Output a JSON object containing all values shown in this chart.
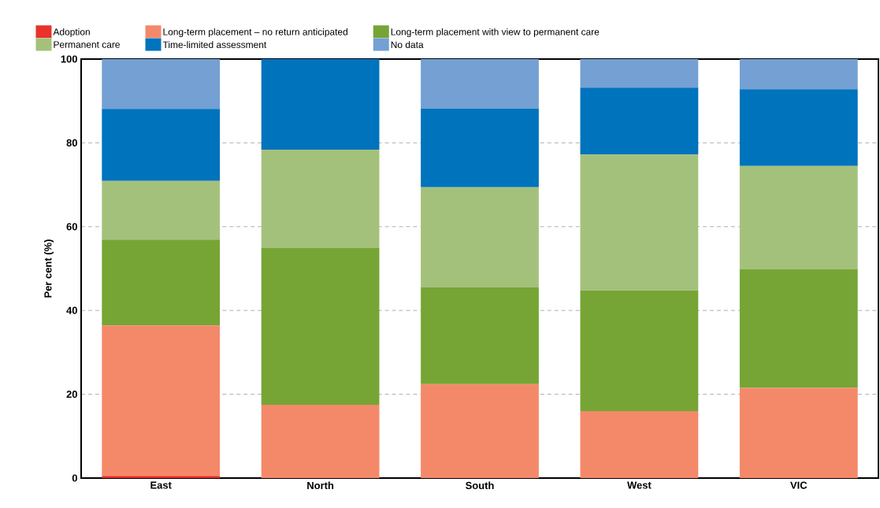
{
  "chart_data": {
    "type": "bar",
    "stacked": true,
    "ylabel": "Per cent (%)",
    "categories": [
      "East",
      "North",
      "South",
      "West",
      "VIC"
    ],
    "series": [
      {
        "name": "Adoption",
        "color": "#e8332a",
        "values": [
          0.5,
          0,
          0,
          0,
          0
        ]
      },
      {
        "name": "Long-term placement – no return anticipated",
        "color": "#f4896a",
        "values": [
          35.9,
          17.5,
          22.4,
          16.0,
          21.5
        ]
      },
      {
        "name": "Long-term placement with view to permanent care",
        "color": "#76a535",
        "values": [
          20.5,
          37.4,
          23.1,
          28.8,
          28.4
        ]
      },
      {
        "name": "Permanent care",
        "color": "#a4c17c",
        "values": [
          14.0,
          23.5,
          23.9,
          32.4,
          24.6
        ]
      },
      {
        "name": "Time-limited assessment",
        "color": "#0073bd",
        "values": [
          17.2,
          21.6,
          18.8,
          16.0,
          18.3
        ]
      },
      {
        "name": "No data",
        "color": "#74a0d3",
        "values": [
          11.9,
          0,
          11.8,
          6.8,
          7.2
        ]
      }
    ],
    "ylim": [
      0,
      100
    ],
    "yticks": [
      0,
      20,
      40,
      60,
      80,
      100
    ],
    "grid": "y",
    "legend": "top"
  }
}
